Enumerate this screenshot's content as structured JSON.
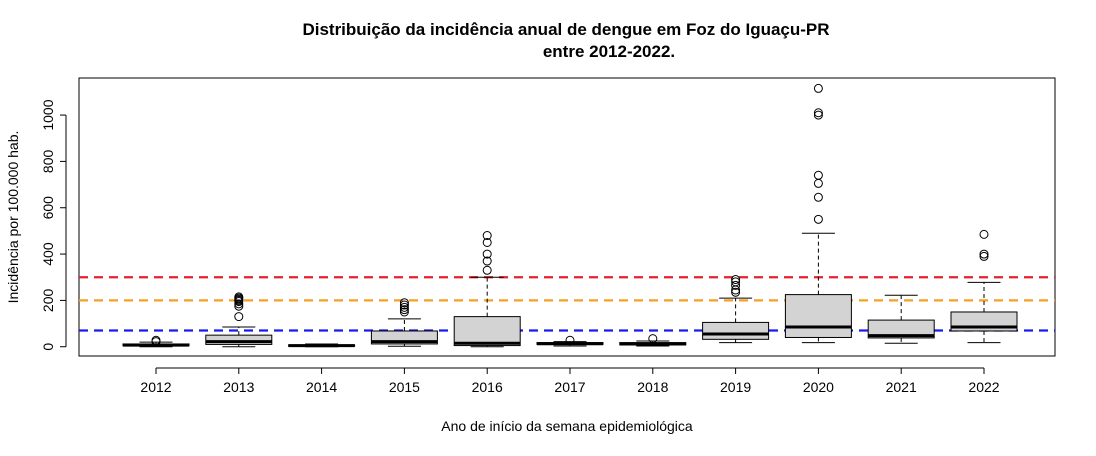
{
  "chart_data": {
    "type": "boxplot",
    "title_line1": "Distribuição da incidência anual de dengue em Foz do Iguaçu-PR",
    "title_line2": "entre 2012-2022.",
    "xlabel": "Ano de início da semana epidemiológica",
    "ylabel": "Incidência por 100.000 hab.",
    "ylim": [
      -40,
      1160
    ],
    "y_ticks": [
      0,
      200,
      400,
      600,
      800,
      1000
    ],
    "y_tick_labels": [
      "0",
      "200",
      "400",
      "600",
      "800",
      "1000"
    ],
    "box_fill": "#d3d3d3",
    "reference_lines": [
      {
        "value": 300,
        "color": "#e8202a"
      },
      {
        "value": 200,
        "color": "#f5a020"
      },
      {
        "value": 70,
        "color": "#1a1aee"
      }
    ],
    "categories": [
      "2012",
      "2013",
      "2014",
      "2015",
      "2016",
      "2017",
      "2018",
      "2019",
      "2020",
      "2021",
      "2022"
    ],
    "boxes": [
      {
        "label": "2012",
        "whisker_low": 0,
        "q1": 4,
        "median": 7,
        "q3": 12,
        "whisker_high": 20,
        "outliers": [
          22,
          28
        ]
      },
      {
        "label": "2013",
        "whisker_low": 0,
        "q1": 10,
        "median": 22,
        "q3": 50,
        "whisker_high": 85,
        "outliers": [
          130,
          175,
          185,
          195,
          200,
          205,
          210,
          215
        ]
      },
      {
        "label": "2014",
        "whisker_low": 0,
        "q1": 2,
        "median": 5,
        "q3": 8,
        "whisker_high": 12,
        "outliers": []
      },
      {
        "label": "2015",
        "whisker_low": 2,
        "q1": 12,
        "median": 22,
        "q3": 68,
        "whisker_high": 120,
        "outliers": [
          150,
          160,
          170,
          180,
          190
        ]
      },
      {
        "label": "2016",
        "whisker_low": 0,
        "q1": 5,
        "median": 15,
        "q3": 130,
        "whisker_high": 300,
        "outliers": [
          330,
          370,
          400,
          450,
          480
        ]
      },
      {
        "label": "2017",
        "whisker_low": 3,
        "q1": 10,
        "median": 13,
        "q3": 18,
        "whisker_high": 22,
        "outliers": [
          28
        ]
      },
      {
        "label": "2018",
        "whisker_low": 3,
        "q1": 8,
        "median": 12,
        "q3": 18,
        "whisker_high": 25,
        "outliers": [
          35
        ]
      },
      {
        "label": "2019",
        "whisker_low": 18,
        "q1": 32,
        "median": 55,
        "q3": 105,
        "whisker_high": 210,
        "outliers": [
          235,
          245,
          265,
          280,
          290
        ]
      },
      {
        "label": "2020",
        "whisker_low": 18,
        "q1": 40,
        "median": 85,
        "q3": 225,
        "whisker_high": 490,
        "outliers": [
          550,
          645,
          705,
          740,
          1000,
          1010,
          1115
        ]
      },
      {
        "label": "2021",
        "whisker_low": 15,
        "q1": 38,
        "median": 48,
        "q3": 115,
        "whisker_high": 222,
        "outliers": []
      },
      {
        "label": "2022",
        "whisker_low": 18,
        "q1": 68,
        "median": 85,
        "q3": 150,
        "whisker_high": 278,
        "outliers": [
          390,
          400,
          485
        ]
      }
    ]
  }
}
